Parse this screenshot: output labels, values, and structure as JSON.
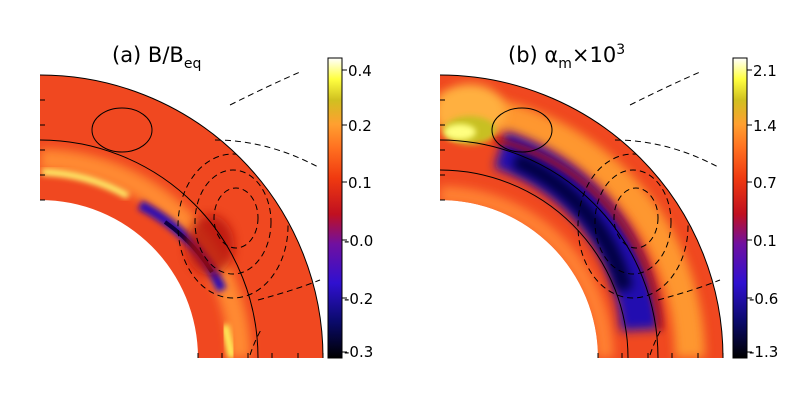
{
  "chart_data": [
    {
      "type": "heatmap",
      "panel": "(a)",
      "title_prefix": "(a) B/B",
      "title_sub": "eq",
      "colorbar": {
        "ticks": [
          "0.4",
          "0.2",
          "0.1",
          "-0.0",
          "-0.2",
          "-0.3"
        ],
        "range": [
          -0.3,
          0.4
        ]
      },
      "field_colors": {
        "background": "#f04820",
        "strong_positive": "#ffff60",
        "positive": "#ffa030",
        "negative": "#4020c0",
        "strong_negative": "#000060"
      }
    },
    {
      "type": "heatmap",
      "panel": "(b)",
      "title_prefix": "(b) α",
      "title_sub": "m",
      "title_suffix": "×10",
      "title_sup": "3",
      "colorbar": {
        "ticks": [
          "2.1",
          "1.4",
          "0.7",
          "0.1",
          "-0.6",
          "-1.3"
        ],
        "range": [
          -1.3,
          2.1
        ]
      },
      "field_colors": {
        "background": "#f04820",
        "strong_positive": "#ffff80",
        "positive": "#ffa030",
        "negative": "#2010c0",
        "strong_negative": "#000030"
      }
    }
  ]
}
